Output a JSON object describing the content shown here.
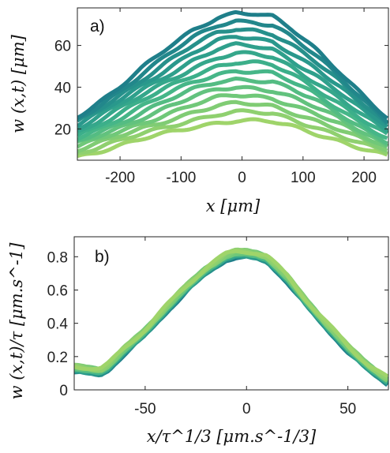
{
  "chart_data": [
    {
      "type": "line",
      "panel_label": "a)",
      "xlabel": "x [μm]",
      "ylabel": "w (x,t) [μm]",
      "xlim": [
        -270,
        240
      ],
      "ylim": [
        5,
        78
      ],
      "xticks": [
        -200,
        -100,
        0,
        100,
        200
      ],
      "xtick_labels": [
        "-200",
        "-100",
        "0",
        "100",
        "200"
      ],
      "yticks": [
        20,
        40,
        60
      ],
      "ytick_labels": [
        "20",
        "40",
        "60"
      ],
      "grid": false,
      "legend": "none",
      "colormap": [
        "#9fd46a",
        "#6cc77a",
        "#3fb38a",
        "#2a9a8c",
        "#1f7f8a"
      ],
      "profile_center": -5,
      "profile_shape": [
        [
          -270,
          0.15
        ],
        [
          -240,
          0.25
        ],
        [
          -200,
          0.4
        ],
        [
          -160,
          0.56
        ],
        [
          -120,
          0.71
        ],
        [
          -80,
          0.85
        ],
        [
          -40,
          0.96
        ],
        [
          -10,
          1.0
        ],
        [
          20,
          0.99
        ],
        [
          50,
          0.96
        ],
        [
          80,
          0.86
        ],
        [
          120,
          0.7
        ],
        [
          160,
          0.52
        ],
        [
          200,
          0.32
        ],
        [
          240,
          0.13
        ]
      ],
      "series_peaks": [
        24,
        28,
        32,
        36,
        40,
        44,
        48,
        52,
        56,
        60,
        64,
        68,
        72,
        76
      ],
      "series_bases": [
        4,
        5,
        6,
        7,
        8,
        9,
        10,
        11,
        12,
        13,
        14,
        15,
        16,
        17
      ]
    },
    {
      "type": "line",
      "panel_label": "b)",
      "xlabel": "x/τ^1/3 [μm.s^-1/3]",
      "ylabel": "w (x,t)/τ [μm.s^-1]",
      "xlim": [
        -85,
        70
      ],
      "ylim": [
        0,
        0.92
      ],
      "xticks": [
        -50,
        0,
        50
      ],
      "xtick_labels": [
        "-50",
        "0",
        "50"
      ],
      "yticks": [
        0,
        0.2,
        0.4,
        0.6,
        0.8
      ],
      "ytick_labels": [
        "0",
        "0.2",
        "0.4",
        "0.6",
        "0.8"
      ],
      "grid": false,
      "legend": "none",
      "colormap": [
        "#9fd46a",
        "#6cc77a",
        "#3fb38a",
        "#2a9a8c",
        "#1f7f8a"
      ],
      "collapsed_curve": {
        "x": [
          -85,
          -78,
          -72,
          -68,
          -60,
          -50,
          -40,
          -30,
          -20,
          -10,
          -5,
          0,
          5,
          10,
          20,
          30,
          40,
          50,
          60,
          70
        ],
        "y": [
          0.13,
          0.12,
          0.11,
          0.14,
          0.24,
          0.35,
          0.48,
          0.61,
          0.72,
          0.8,
          0.82,
          0.82,
          0.81,
          0.79,
          0.67,
          0.52,
          0.38,
          0.25,
          0.14,
          0.05
        ]
      },
      "n_series": 14
    }
  ]
}
